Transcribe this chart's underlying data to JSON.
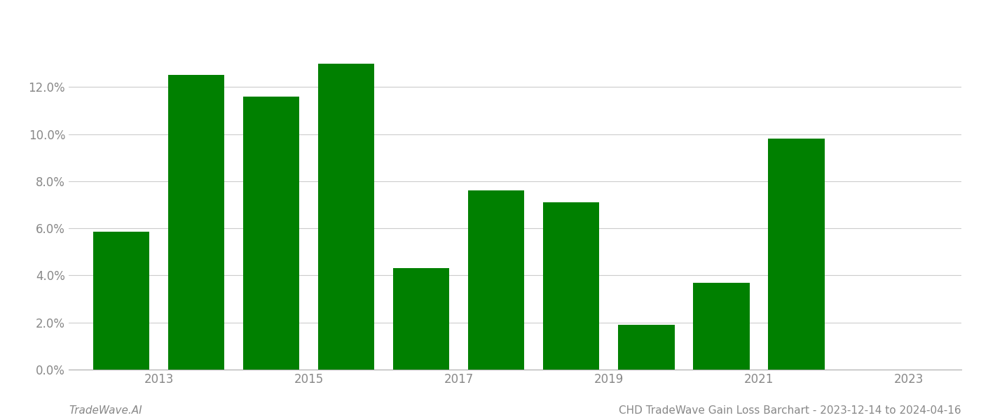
{
  "years": [
    2013,
    2014,
    2015,
    2016,
    2017,
    2018,
    2019,
    2020,
    2021,
    2022
  ],
  "values": [
    0.0585,
    0.125,
    0.116,
    0.13,
    0.043,
    0.076,
    0.071,
    0.019,
    0.037,
    0.098
  ],
  "bar_color": "#008000",
  "title": "CHD TradeWave Gain Loss Barchart - 2023-12-14 to 2024-04-16",
  "watermark": "TradeWave.AI",
  "ylim": [
    0,
    0.148
  ],
  "yticks": [
    0.0,
    0.02,
    0.04,
    0.06,
    0.08,
    0.1,
    0.12
  ],
  "background_color": "#ffffff",
  "grid_color": "#cccccc",
  "title_fontsize": 11,
  "watermark_fontsize": 11,
  "tick_fontsize": 12,
  "bar_width": 0.75
}
